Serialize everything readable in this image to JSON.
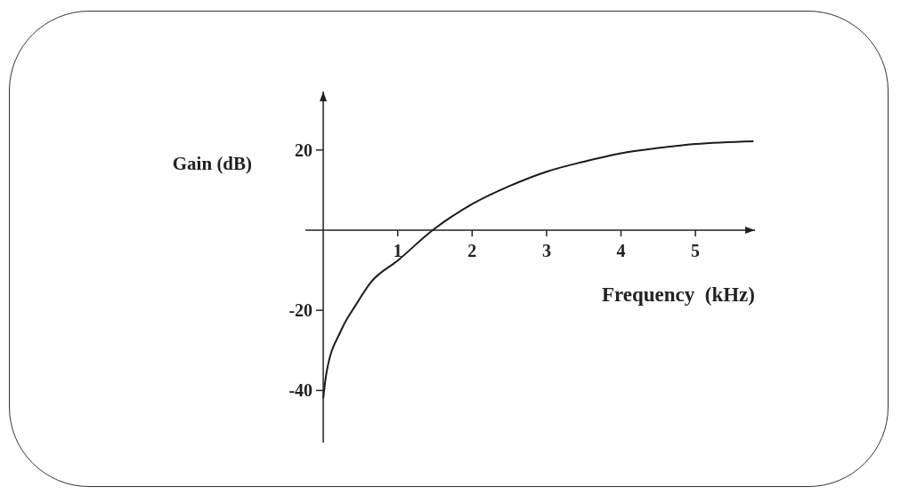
{
  "chart_data": {
    "type": "line",
    "xlabel": "Frequency  (kHz)",
    "ylabel": "Gain (dB)",
    "color": "#1a1a1a",
    "x": [
      0,
      0.04,
      0.24,
      0.44,
      0.64,
      1,
      1.47,
      2,
      2.5,
      3,
      3.5,
      4,
      4.5,
      5,
      5.78
    ],
    "values": [
      -42,
      -36,
      -25,
      -18.6,
      -13,
      -7.6,
      0,
      6.5,
      11,
      14.6,
      17.1,
      19.2,
      20.5,
      21.5,
      22.2
    ],
    "xlim": [
      -0.24,
      5.8
    ],
    "ylim": [
      -53,
      34.6
    ],
    "xticks": [
      1,
      2,
      3,
      4,
      5
    ],
    "yticks": [
      -40,
      -20,
      20
    ]
  }
}
